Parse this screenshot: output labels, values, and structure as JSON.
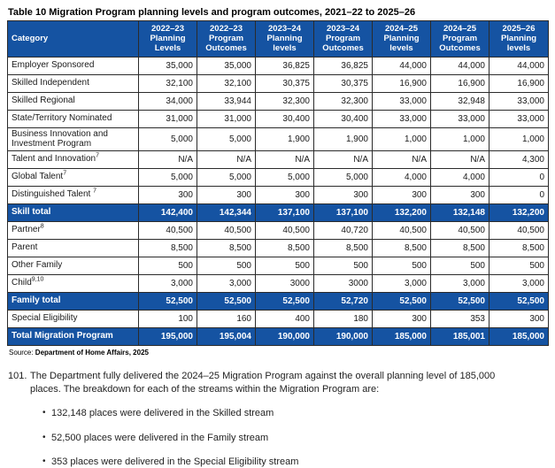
{
  "title": "Table 10 Migration Program planning levels and program outcomes, 2021–22 to 2025–26",
  "table": {
    "columns": [
      "Category",
      "2022–23 Planning Levels",
      "2022–23 Program Outcomes",
      "2023–24 Planning levels",
      "2023–24 Program Outcomes",
      "2024–25 Planning levels",
      "2024–25 Program Outcomes",
      "2025–26 Planning levels"
    ],
    "rows": [
      {
        "label": "Employer Sponsored",
        "sup": "",
        "type": "normal",
        "values": [
          "35,000",
          "35,000",
          "36,825",
          "36,825",
          "44,000",
          "44,000",
          "44,000"
        ]
      },
      {
        "label": "Skilled Independent",
        "sup": "",
        "type": "normal",
        "values": [
          "32,100",
          "32,100",
          "30,375",
          "30,375",
          "16,900",
          "16,900",
          "16,900"
        ]
      },
      {
        "label": "Skilled Regional",
        "sup": "",
        "type": "normal",
        "values": [
          "34,000",
          "33,944",
          "32,300",
          "32,300",
          "33,000",
          "32,948",
          "33,000"
        ]
      },
      {
        "label": "State/Territory Nominated",
        "sup": "",
        "type": "normal",
        "values": [
          "31,000",
          "31,000",
          "30,400",
          "30,400",
          "33,000",
          "33,000",
          "33,000"
        ]
      },
      {
        "label": "Business Innovation and Investment Program",
        "sup": "",
        "type": "normal",
        "values": [
          "5,000",
          "5,000",
          "1,900",
          "1,900",
          "1,000",
          "1,000",
          "1,000"
        ]
      },
      {
        "label": "Talent and Innovation",
        "sup": "7",
        "type": "normal",
        "values": [
          "N/A",
          "N/A",
          "N/A",
          "N/A",
          "N/A",
          "N/A",
          "4,300"
        ]
      },
      {
        "label": "Global Talent",
        "sup": "7",
        "type": "normal",
        "values": [
          "5,000",
          "5,000",
          "5,000",
          "5,000",
          "4,000",
          "4,000",
          "0"
        ]
      },
      {
        "label": "Distinguished Talent ",
        "sup": "7",
        "type": "normal",
        "values": [
          "300",
          "300",
          "300",
          "300",
          "300",
          "300",
          "0"
        ]
      },
      {
        "label": "Skill total",
        "sup": "",
        "type": "total",
        "values": [
          "142,400",
          "142,344",
          "137,100",
          "137,100",
          "132,200",
          "132,148",
          "132,200"
        ]
      },
      {
        "label": "Partner",
        "sup": "8",
        "type": "normal",
        "values": [
          "40,500",
          "40,500",
          "40,500",
          "40,720",
          "40,500",
          "40,500",
          "40,500"
        ]
      },
      {
        "label": "Parent",
        "sup": "",
        "type": "normal",
        "values": [
          "8,500",
          "8,500",
          "8,500",
          "8,500",
          "8,500",
          "8,500",
          "8,500"
        ]
      },
      {
        "label": "Other Family",
        "sup": "",
        "type": "normal",
        "values": [
          "500",
          "500",
          "500",
          "500",
          "500",
          "500",
          "500"
        ]
      },
      {
        "label": "Child",
        "sup": "9,10",
        "type": "normal",
        "values": [
          "3,000",
          "3,000",
          "3000",
          "3000",
          "3,000",
          "3,000",
          "3,000"
        ]
      },
      {
        "label": "Family total",
        "sup": "",
        "type": "total",
        "values": [
          "52,500",
          "52,500",
          "52,500",
          "52,720",
          "52,500",
          "52,500",
          "52,500"
        ]
      },
      {
        "label": "Special Eligibility",
        "sup": "",
        "type": "normal",
        "values": [
          "100",
          "160",
          "400",
          "180",
          "300",
          "353",
          "300"
        ]
      },
      {
        "label": "Total Migration Program",
        "sup": "",
        "type": "total",
        "values": [
          "195,000",
          "195,004",
          "190,000",
          "190,000",
          "185,000",
          "185,001",
          "185,000"
        ]
      }
    ]
  },
  "source": {
    "prefix": "Source: ",
    "text": "Department of Home Affairs, 2025"
  },
  "paragraph": {
    "number": "101.",
    "text": "The Department fully delivered the 2024–25 Migration Program against the overall planning level of 185,000 places. The breakdown for each of the streams within the Migration Program are:"
  },
  "bullets": [
    "132,148 places were delivered in the Skilled stream",
    "52,500 places were delivered in the Family stream",
    "353 places were delivered in the Special Eligibility stream"
  ],
  "colors": {
    "header_blue": "#1553a2",
    "border": "#2b2b2b",
    "text": "#1a1a1a"
  }
}
